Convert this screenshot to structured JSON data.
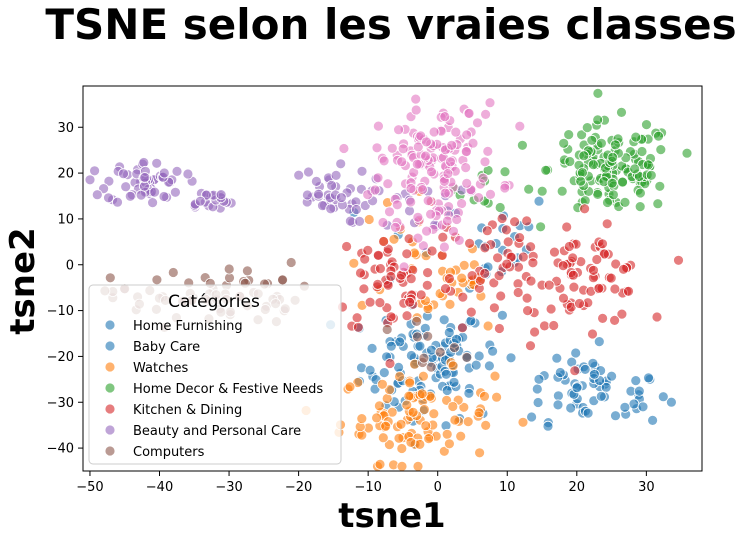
{
  "chart_data": {
    "type": "scatter",
    "title": "TSNE selon les vraies classes",
    "xlabel": "tsne1",
    "ylabel": "tsne2",
    "xlim": [
      -51,
      38
    ],
    "ylim": [
      -45,
      39
    ],
    "xticks": [
      -50,
      -40,
      -30,
      -20,
      -10,
      0,
      10,
      20,
      30
    ],
    "yticks": [
      -40,
      -30,
      -20,
      -10,
      0,
      10,
      20,
      30
    ],
    "grid": false,
    "legend": {
      "title": "Catégories",
      "placement": "lower-left"
    },
    "series": [
      {
        "name": "Home Furnishing",
        "color": "#1f77b4",
        "clusters": [
          {
            "cx": -2,
            "cy": -22,
            "sx": 4.5,
            "sy": 6.5,
            "n": 70
          },
          {
            "cx": 23,
            "cy": -28,
            "sx": 5.0,
            "sy": 3.5,
            "n": 45
          },
          {
            "cx": 4,
            "cy": 5,
            "sx": 7.0,
            "sy": 6.0,
            "n": 25
          }
        ]
      },
      {
        "name": "Baby Care",
        "color": "#1f77b4",
        "clusters": [
          {
            "cx": 2,
            "cy": -20,
            "sx": 5.0,
            "sy": 6.0,
            "n": 40
          },
          {
            "cx": 20,
            "cy": -26,
            "sx": 4.0,
            "sy": 4.0,
            "n": 20
          }
        ]
      },
      {
        "name": "Watches",
        "color": "#ff7f0e",
        "clusters": [
          {
            "cx": -3,
            "cy": -33,
            "sx": 5.5,
            "sy": 5.0,
            "n": 95
          },
          {
            "cx": -4,
            "cy": 2,
            "sx": 5.0,
            "sy": 6.0,
            "n": 25
          },
          {
            "cx": 3,
            "cy": -6,
            "sx": 3.0,
            "sy": 3.0,
            "n": 20
          }
        ]
      },
      {
        "name": "Home Decor & Festive Needs",
        "color": "#2ca02c",
        "clusters": [
          {
            "cx": 25,
            "cy": 21,
            "sx": 4.5,
            "sy": 5.0,
            "n": 140
          },
          {
            "cx": 7,
            "cy": 17,
            "sx": 2.0,
            "sy": 2.5,
            "n": 10
          }
        ]
      },
      {
        "name": "Kitchen & Dining",
        "color": "#d62728",
        "clusters": [
          {
            "cx": 22,
            "cy": -3,
            "sx": 4.0,
            "sy": 5.0,
            "n": 60
          },
          {
            "cx": 10,
            "cy": -2,
            "sx": 5.5,
            "sy": 7.0,
            "n": 60
          },
          {
            "cx": -6,
            "cy": -3,
            "sx": 4.5,
            "sy": 6.5,
            "n": 60
          }
        ]
      },
      {
        "name": "Beauty and Personal Care",
        "color": "#9467bd",
        "clusters": [
          {
            "cx": -42,
            "cy": 18,
            "sx": 2.8,
            "sy": 2.3,
            "n": 55
          },
          {
            "cx": -33,
            "cy": 14,
            "sx": 1.8,
            "sy": 1.2,
            "n": 20
          },
          {
            "cx": -16,
            "cy": 15,
            "sx": 3.2,
            "sy": 3.0,
            "n": 40
          },
          {
            "cx": -3,
            "cy": 13,
            "sx": 3.5,
            "sy": 3.0,
            "n": 15
          }
        ]
      },
      {
        "name": "Computers",
        "color": "#8c564b",
        "clusters": [
          {
            "cx": -37,
            "cy": -7,
            "sx": 5.0,
            "sy": 3.0,
            "n": 45
          },
          {
            "cx": -24,
            "cy": -7,
            "sx": 3.5,
            "sy": 3.5,
            "n": 25
          },
          {
            "cx": -1,
            "cy": -20,
            "sx": 3.0,
            "sy": 4.0,
            "n": 10
          }
        ]
      },
      {
        "name": "",
        "color": "#e377c2",
        "clusters": [
          {
            "cx": 0,
            "cy": 23,
            "sx": 4.5,
            "sy": 6.0,
            "n": 130
          },
          {
            "cx": -3,
            "cy": 10,
            "sx": 3.5,
            "sy": 4.0,
            "n": 25
          }
        ]
      }
    ]
  }
}
